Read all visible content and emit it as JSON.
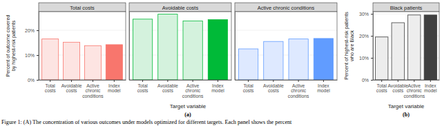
{
  "chart_data": [
    {
      "type": "bar",
      "title": "Total costs",
      "categories": [
        "Total costs",
        "Avoidable costs",
        "Active chronic conditions",
        "Index model"
      ],
      "values": [
        16.5,
        15.2,
        13.8,
        14.2
      ],
      "color": "#F8766D",
      "colors": [
        "#FDE4E2",
        "#FDE4E2",
        "#FDE4E2",
        "#F8766D"
      ],
      "ylim": [
        0,
        27.5
      ],
      "yticks": [
        {
          "value": 0,
          "label": "0%"
        },
        {
          "value": 10,
          "label": "10%"
        },
        {
          "value": 20,
          "label": "20%"
        }
      ],
      "grid": true,
      "y_label": "Percent of outcome covered by highest-risk patients"
    },
    {
      "type": "bar",
      "title": "Avoidable costs",
      "categories": [
        "Total costs",
        "Avoidable costs",
        "Active chronic conditions",
        "Index model"
      ],
      "values": [
        24.5,
        26.5,
        23.8,
        24.3
      ],
      "color": "#00BA38",
      "colors": [
        "#D4F2DD",
        "#D4F2DD",
        "#D4F2DD",
        "#00BA38"
      ],
      "ylim": [
        0,
        27.5
      ],
      "yticks": [
        {
          "value": 0,
          "label": "0%"
        },
        {
          "value": 10,
          "label": "10%"
        },
        {
          "value": 20,
          "label": "20%"
        }
      ],
      "grid": true,
      "tick_labels": "x",
      "x_label": "Target variable",
      "panel_label": "(a)"
    },
    {
      "type": "bar",
      "title": "Active chronic conditions",
      "categories": [
        "Total costs",
        "Avoidable costs",
        "Active chronic conditions",
        "Index model"
      ],
      "values": [
        12.5,
        15.5,
        16.5,
        16.7
      ],
      "color": "#619CFF",
      "colors": [
        "#DEE9FF",
        "#DEE9FF",
        "#DEE9FF",
        "#619CFF"
      ],
      "ylim": [
        0,
        27.5
      ],
      "yticks": [
        {
          "value": 0,
          "label": "0%"
        },
        {
          "value": 10,
          "label": "10%"
        },
        {
          "value": 20,
          "label": "20%"
        }
      ],
      "grid": true,
      "tick_labels": "x"
    },
    {
      "type": "bar",
      "title": "Black patients",
      "categories": [
        "Total costs",
        "Avoidable costs",
        "Active chronic conditions",
        "Index model"
      ],
      "values": [
        19.5,
        26,
        29.5,
        29.5
      ],
      "color": "#404040",
      "colors": [
        "#EDEDED",
        "#EDEDED",
        "#EDEDED",
        "#404040"
      ],
      "ylim": [
        0,
        31
      ],
      "yticks": [
        {
          "value": 0,
          "label": "0%"
        },
        {
          "value": 10,
          "label": "10%"
        },
        {
          "value": 20,
          "label": "20%"
        },
        {
          "value": 30,
          "label": "30%"
        }
      ],
      "grid": true,
      "y_label": "Percent of highest-risk patients who are Black",
      "x_label": "Target variable",
      "panel_label": "(b)"
    }
  ],
  "caption": "Figure 1: (A) The concentration of various outcomes under models optimized for different targets. Each panel shows the percent"
}
